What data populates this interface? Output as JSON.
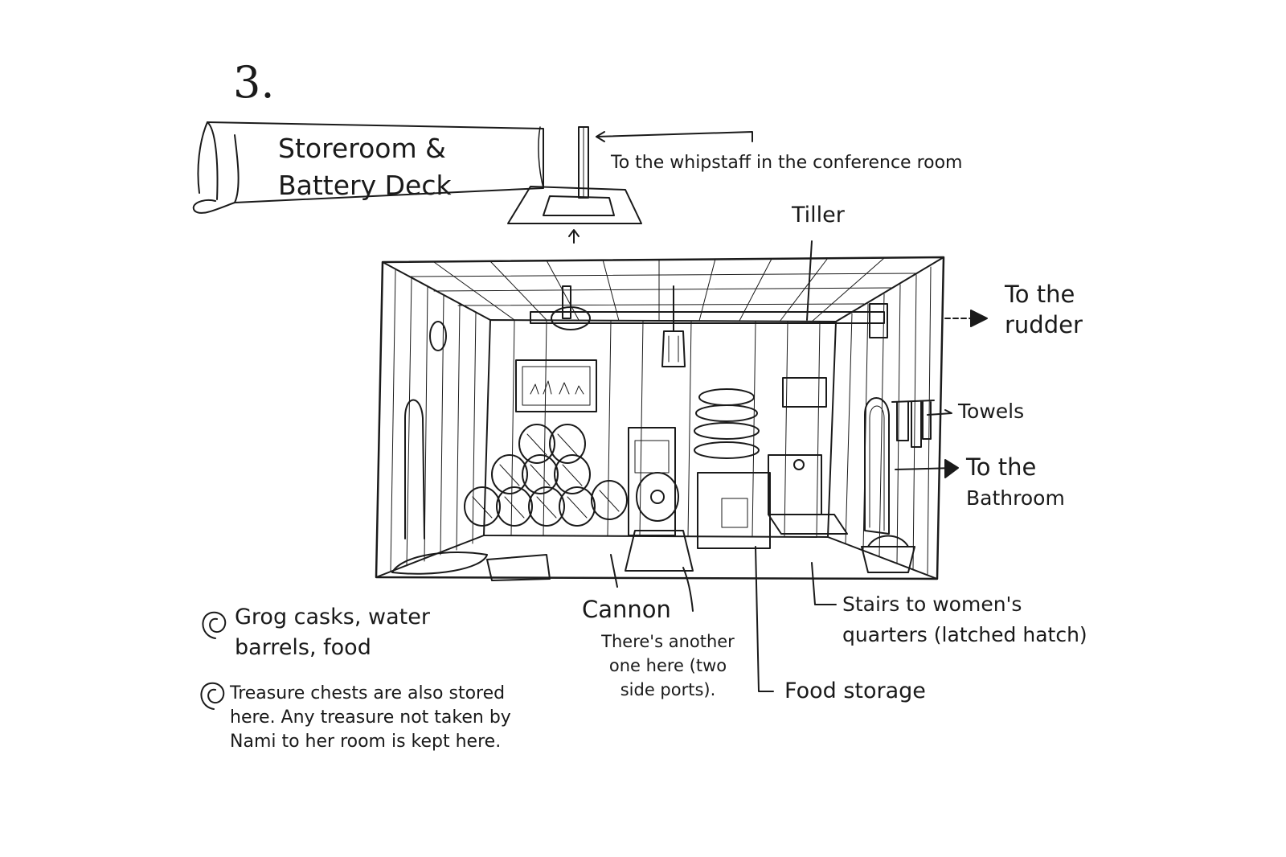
{
  "page_number": "3.",
  "banner": {
    "line1": "Storeroom &",
    "line2": "Battery Deck"
  },
  "labels": {
    "whipstaff": "To the whipstaff in the conference room",
    "tiller": "Tiller",
    "rudder_1": "To the",
    "rudder_2": "rudder",
    "towels": "Towels",
    "bathroom_1": "To the",
    "bathroom_2": "Bathroom",
    "cannon": "Cannon",
    "cannon_note_1": "There's another",
    "cannon_note_2": "one here (two",
    "cannon_note_3": "side ports).",
    "stairs_1": "Stairs to women's",
    "stairs_2": "quarters (latched hatch)",
    "food_storage": "Food storage"
  },
  "notes": {
    "note1_line1": "Grog casks, water",
    "note1_line2": "barrels, food",
    "note2_line1": "Treasure chests are also stored",
    "note2_line2": "here. Any treasure not taken by",
    "note2_line3": "Nami to her room is kept here."
  },
  "colors": {
    "ink": "#1a1a1a",
    "paper": "#ffffff"
  }
}
